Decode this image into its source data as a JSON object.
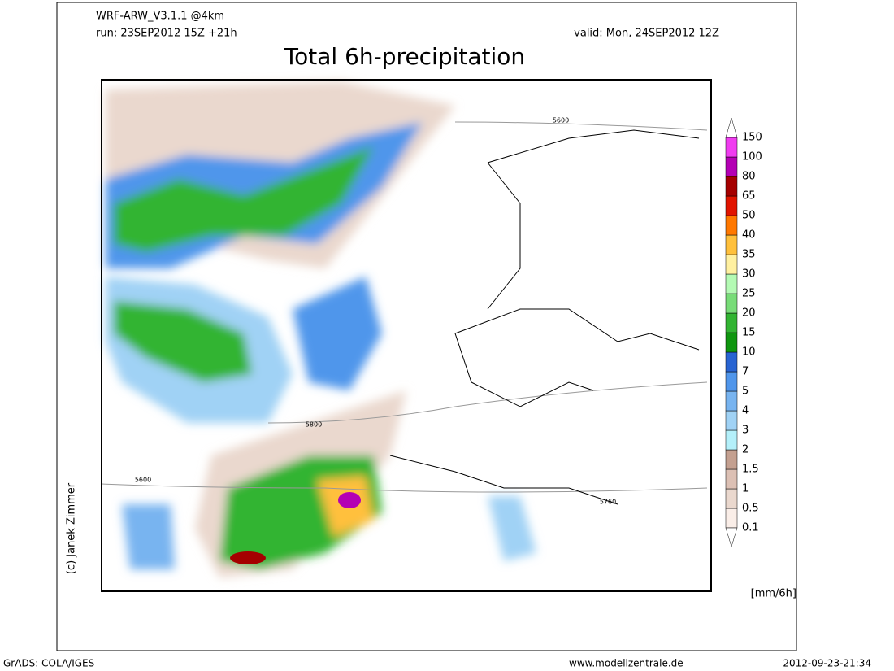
{
  "header": {
    "model": "WRF-ARW_V3.1.1 @4km",
    "run": "run: 23SEP2012 15Z +21h",
    "valid": "valid: Mon, 24SEP2012 12Z",
    "title": "Total 6h-precipitation"
  },
  "map": {
    "contour_labels": [
      "5600",
      "5800",
      "5600",
      "5760"
    ]
  },
  "legend": {
    "levels": [
      "0.1",
      "0.5",
      "1",
      "1.5",
      "2",
      "3",
      "4",
      "5",
      "7",
      "10",
      "15",
      "20",
      "25",
      "30",
      "35",
      "40",
      "50",
      "65",
      "80",
      "100",
      "150"
    ],
    "colors": [
      "#faeee8",
      "#ead8ce",
      "#dcc0b4",
      "#c4a090",
      "#b4f0fa",
      "#a0d2f5",
      "#78b4f0",
      "#5096eb",
      "#2864d2",
      "#0f960f",
      "#32b432",
      "#78dc78",
      "#b4fab4",
      "#fff0a0",
      "#ffc03c",
      "#ff7800",
      "#e11400",
      "#a50000",
      "#b400b4",
      "#f03cf0"
    ],
    "unit": "[mm/6h]"
  },
  "credit": "(c) Janek Zimmer",
  "footer": {
    "left": "GrADS: COLA/IGES",
    "center": "www.modellzentrale.de",
    "right": "2012-09-23-21:34"
  }
}
